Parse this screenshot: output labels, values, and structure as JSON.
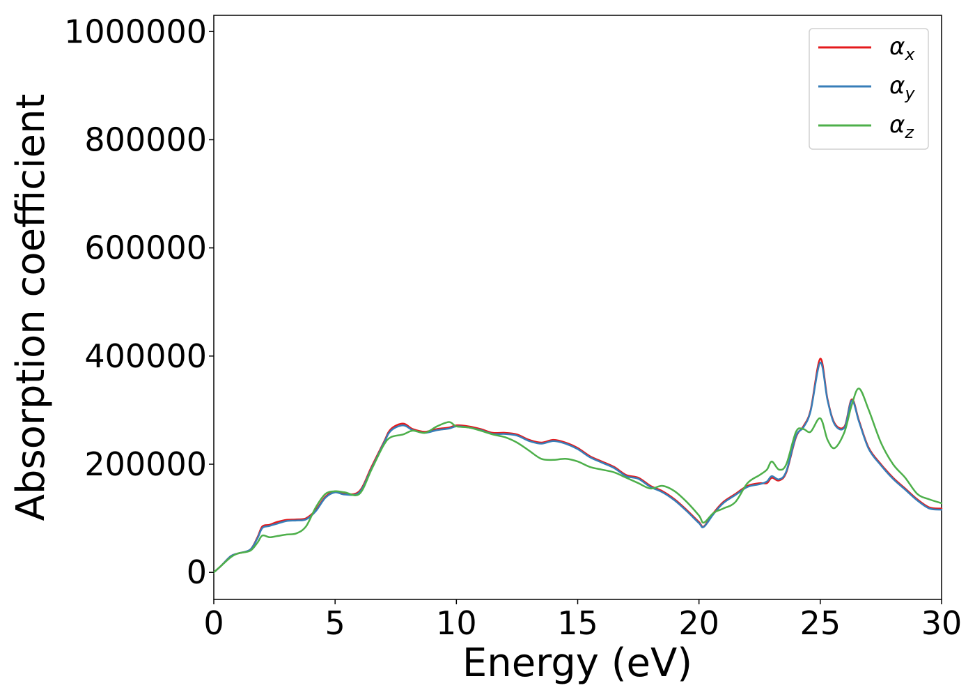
{
  "chart_data": {
    "type": "line",
    "title": "",
    "xlabel": "Energy (eV)",
    "ylabel": "Absorption coefficient",
    "xlim": [
      0,
      30
    ],
    "ylim": [
      -50000,
      1030000
    ],
    "x_ticks": [
      "0",
      "5",
      "10",
      "15",
      "20",
      "25",
      "30"
    ],
    "x_tick_values": [
      0,
      5,
      10,
      15,
      20,
      25,
      30
    ],
    "y_ticks": [
      "0",
      "200000",
      "400000",
      "600000",
      "800000",
      "1000000"
    ],
    "y_tick_values": [
      0,
      200000,
      400000,
      600000,
      800000,
      1000000
    ],
    "grid": false,
    "legend": {
      "position": "top-right"
    },
    "series": [
      {
        "name": "α_x",
        "name_main": "α",
        "name_sub": "x",
        "color": "#e41a1c",
        "x": [
          0,
          0.3,
          0.7,
          1.0,
          1.5,
          1.8,
          2.0,
          2.3,
          2.6,
          3.0,
          3.4,
          3.8,
          4.2,
          4.6,
          5.0,
          5.4,
          6.0,
          6.5,
          7.0,
          7.3,
          7.8,
          8.2,
          8.7,
          9.2,
          9.7,
          10.0,
          10.5,
          11.0,
          11.5,
          12.0,
          12.5,
          13.0,
          13.5,
          14.0,
          14.5,
          15.0,
          15.5,
          16.0,
          16.5,
          17.0,
          17.5,
          18.0,
          18.5,
          19.0,
          19.5,
          20.0,
          20.2,
          20.6,
          21.0,
          21.5,
          22.0,
          22.5,
          22.8,
          23.0,
          23.3,
          23.6,
          24.0,
          24.3,
          24.6,
          25.0,
          25.3,
          25.6,
          26.0,
          26.3,
          26.6,
          27.0,
          27.5,
          28.0,
          28.5,
          29.0,
          29.5,
          30.0
        ],
        "values": [
          0,
          12000,
          30000,
          35000,
          42000,
          65000,
          85000,
          88000,
          93000,
          97000,
          98000,
          100000,
          115000,
          140000,
          150000,
          145000,
          150000,
          195000,
          240000,
          265000,
          275000,
          265000,
          260000,
          265000,
          268000,
          272000,
          270000,
          265000,
          258000,
          258000,
          255000,
          245000,
          240000,
          245000,
          240000,
          230000,
          215000,
          205000,
          195000,
          180000,
          175000,
          160000,
          150000,
          135000,
          115000,
          93000,
          85000,
          110000,
          130000,
          145000,
          160000,
          165000,
          165000,
          175000,
          170000,
          185000,
          250000,
          270000,
          300000,
          395000,
          320000,
          275000,
          270000,
          320000,
          280000,
          230000,
          200000,
          175000,
          155000,
          135000,
          120000,
          118000
        ]
      },
      {
        "name": "α_y",
        "name_main": "α",
        "name_sub": "y",
        "color": "#377eb8",
        "x": [
          0,
          0.3,
          0.7,
          1.0,
          1.5,
          1.8,
          2.0,
          2.3,
          2.6,
          3.0,
          3.4,
          3.8,
          4.2,
          4.6,
          5.0,
          5.4,
          6.0,
          6.5,
          7.0,
          7.3,
          7.8,
          8.2,
          8.7,
          9.2,
          9.7,
          10.0,
          10.5,
          11.0,
          11.5,
          12.0,
          12.5,
          13.0,
          13.5,
          14.0,
          14.5,
          15.0,
          15.5,
          16.0,
          16.5,
          17.0,
          17.5,
          18.0,
          18.5,
          19.0,
          19.5,
          20.0,
          20.2,
          20.6,
          21.0,
          21.5,
          22.0,
          22.5,
          22.8,
          23.0,
          23.3,
          23.6,
          24.0,
          24.3,
          24.6,
          25.0,
          25.3,
          25.6,
          26.0,
          26.3,
          26.6,
          27.0,
          27.5,
          28.0,
          28.5,
          29.0,
          29.5,
          30.0
        ],
        "values": [
          0,
          12000,
          30000,
          35000,
          42000,
          63000,
          82000,
          86000,
          90000,
          95000,
          96000,
          98000,
          113000,
          138000,
          148000,
          144000,
          148000,
          192000,
          238000,
          262000,
          272000,
          263000,
          258000,
          263000,
          266000,
          270000,
          268000,
          263000,
          256000,
          256000,
          253000,
          243000,
          238000,
          243000,
          238000,
          228000,
          213000,
          203000,
          193000,
          178000,
          173000,
          158000,
          148000,
          133000,
          113000,
          91000,
          84000,
          108000,
          128000,
          143000,
          158000,
          163000,
          168000,
          178000,
          172000,
          187000,
          252000,
          268000,
          298000,
          388000,
          318000,
          273000,
          268000,
          318000,
          278000,
          228000,
          198000,
          173000,
          153000,
          133000,
          118000,
          116000
        ]
      },
      {
        "name": "α_z",
        "name_main": "α",
        "name_sub": "z",
        "color": "#4daf4a",
        "x": [
          0,
          0.3,
          0.7,
          1.0,
          1.5,
          1.8,
          2.0,
          2.3,
          2.6,
          3.0,
          3.4,
          3.8,
          4.2,
          4.6,
          5.0,
          5.4,
          6.0,
          6.5,
          7.0,
          7.3,
          7.8,
          8.2,
          8.7,
          9.2,
          9.7,
          10.0,
          10.5,
          11.0,
          11.5,
          12.0,
          12.5,
          13.0,
          13.5,
          14.0,
          14.5,
          15.0,
          15.5,
          16.0,
          16.5,
          17.0,
          17.5,
          18.0,
          18.5,
          19.0,
          19.5,
          20.0,
          20.2,
          20.6,
          21.0,
          21.5,
          22.0,
          22.5,
          22.8,
          23.0,
          23.3,
          23.6,
          24.0,
          24.3,
          24.6,
          25.0,
          25.3,
          25.6,
          26.0,
          26.3,
          26.6,
          27.0,
          27.5,
          28.0,
          28.5,
          29.0,
          29.5,
          30.0
        ],
        "values": [
          0,
          12000,
          28000,
          35000,
          40000,
          55000,
          68000,
          65000,
          67000,
          70000,
          72000,
          85000,
          120000,
          145000,
          150000,
          148000,
          145000,
          190000,
          235000,
          250000,
          255000,
          262000,
          258000,
          270000,
          278000,
          270000,
          268000,
          262000,
          255000,
          250000,
          240000,
          225000,
          210000,
          208000,
          210000,
          205000,
          195000,
          190000,
          185000,
          175000,
          165000,
          155000,
          160000,
          150000,
          130000,
          105000,
          92000,
          110000,
          118000,
          130000,
          165000,
          180000,
          190000,
          205000,
          190000,
          200000,
          260000,
          265000,
          260000,
          285000,
          245000,
          230000,
          260000,
          310000,
          340000,
          300000,
          240000,
          200000,
          175000,
          145000,
          135000,
          128000
        ]
      }
    ]
  }
}
